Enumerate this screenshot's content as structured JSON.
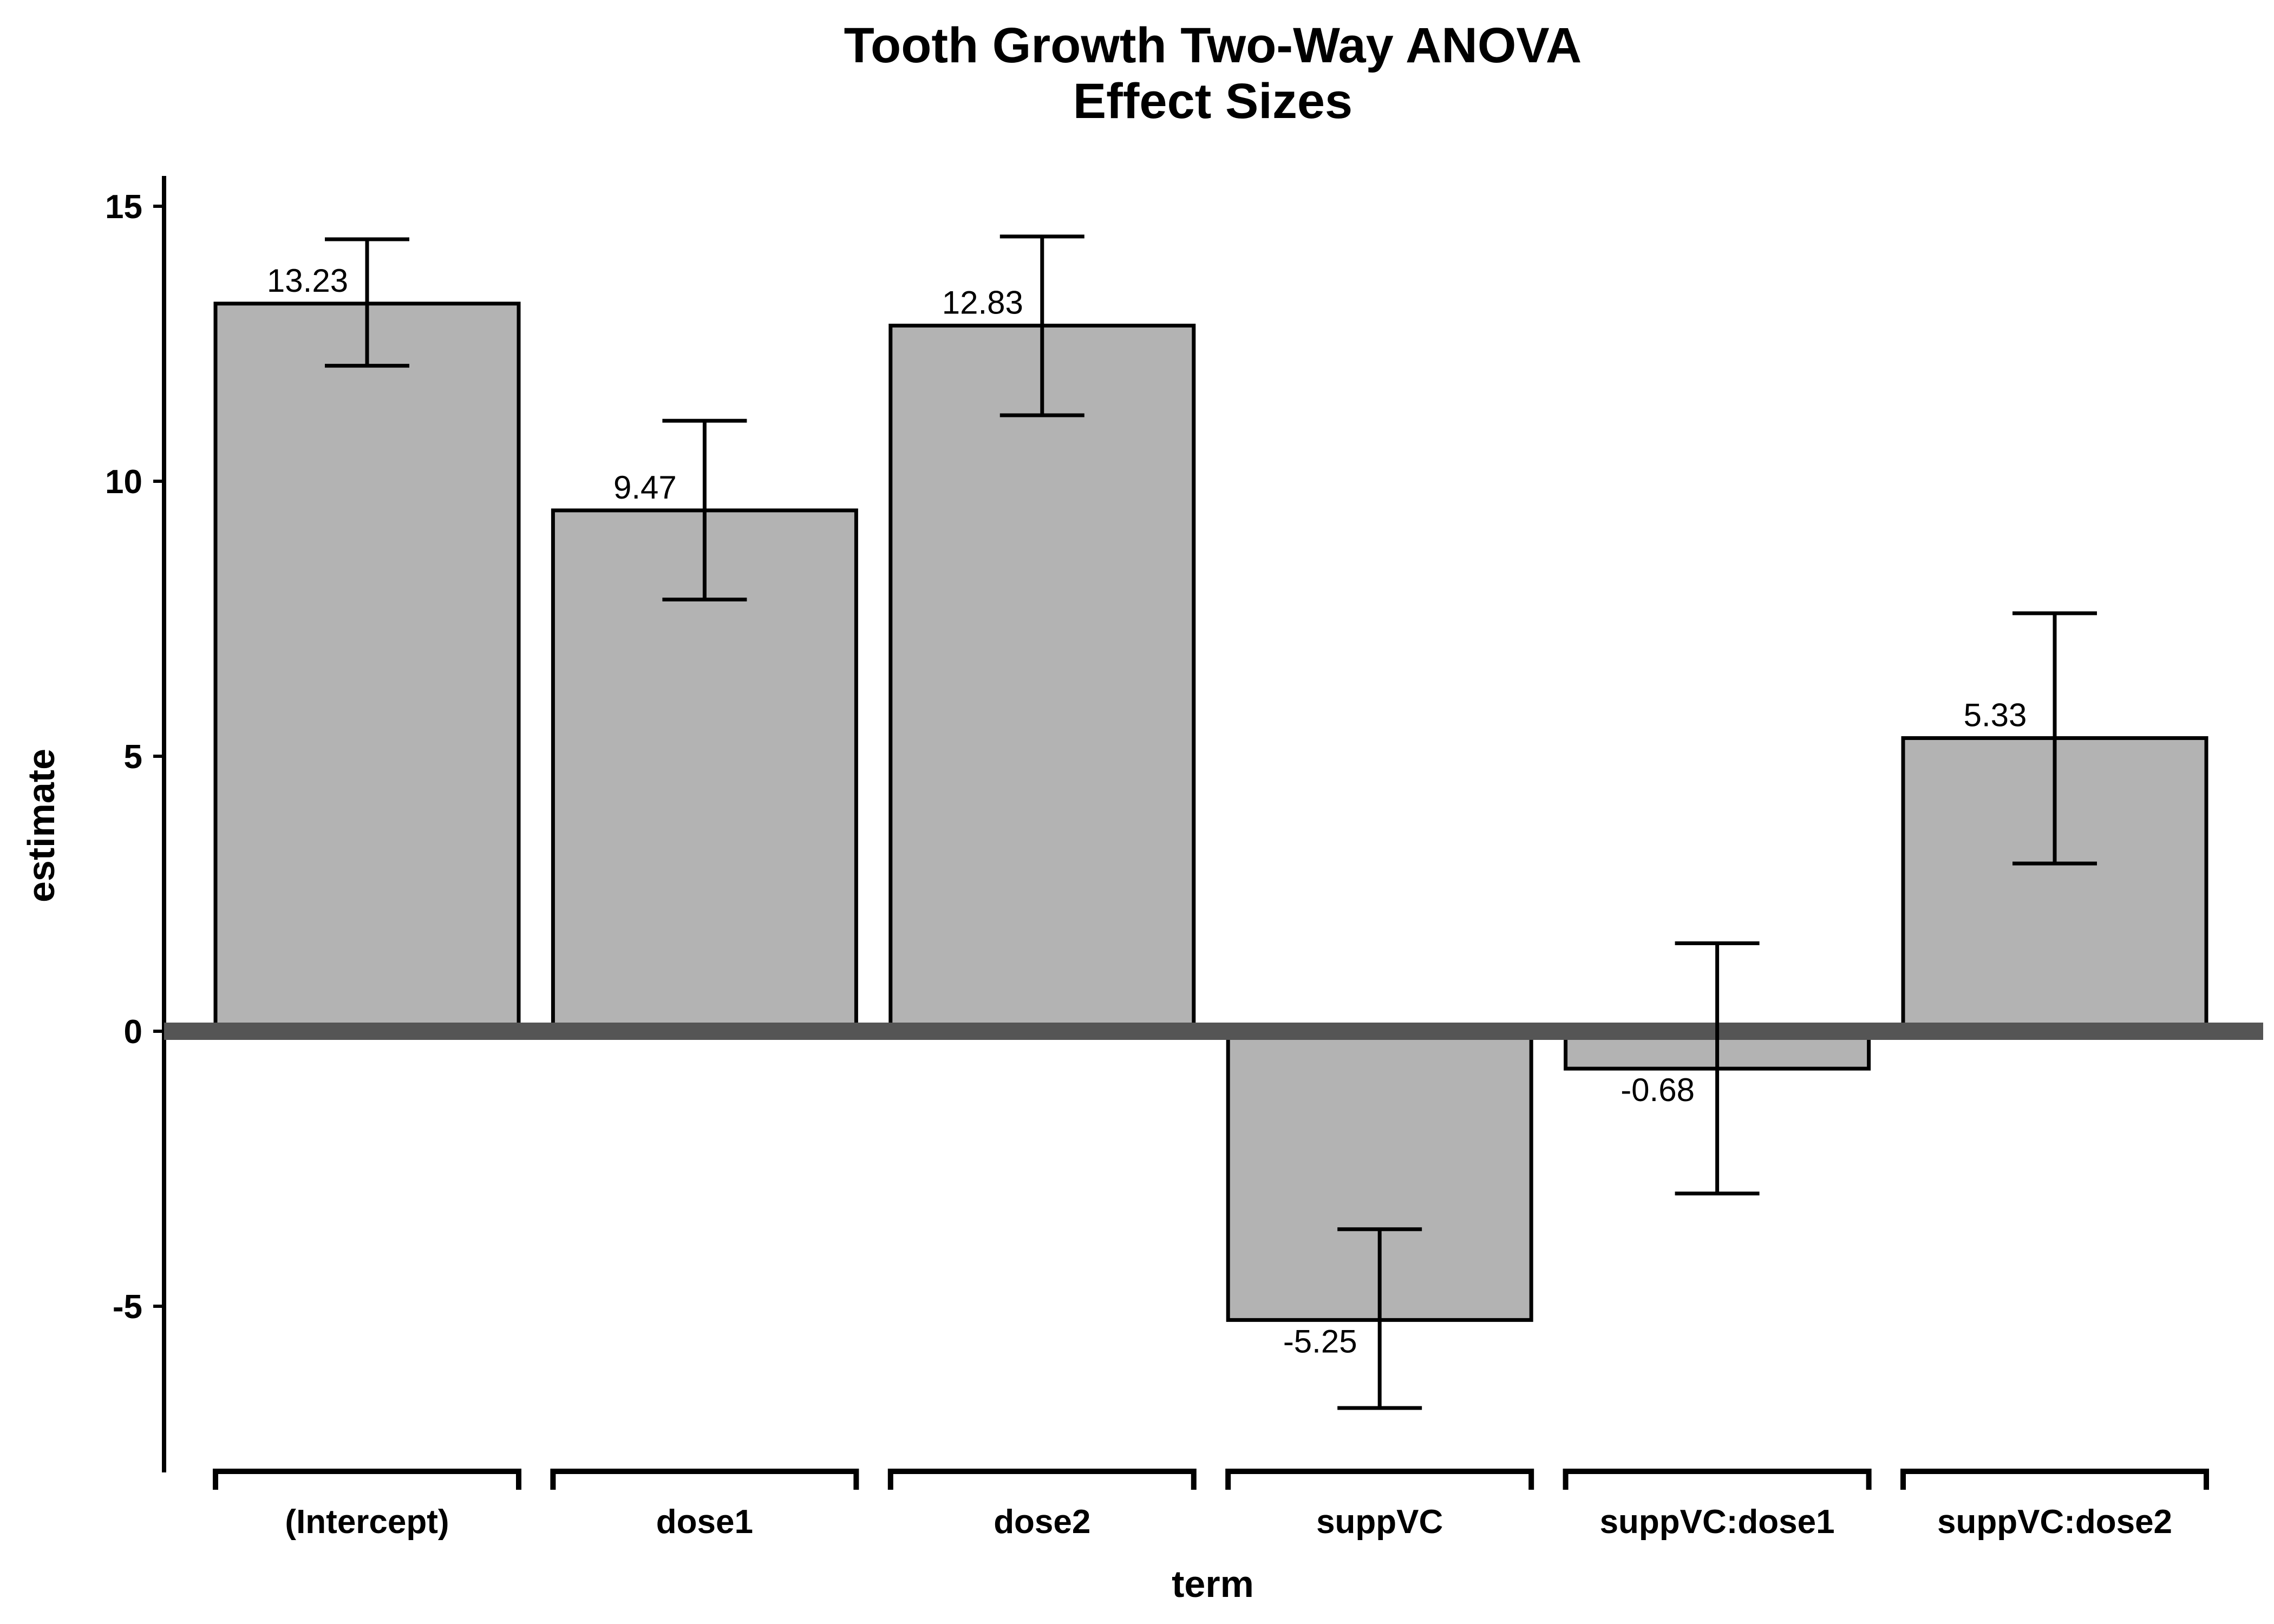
{
  "chart_data": {
    "type": "bar",
    "title": "Tooth Growth Two-Way ANOVA",
    "subtitle": "Effect Sizes",
    "xlabel": "term",
    "ylabel": "estimate",
    "ylim": [
      -8,
      16
    ],
    "yticks": [
      15,
      10,
      5,
      0,
      -5
    ],
    "ytick_labels": [
      "15",
      "10",
      "5",
      "0",
      "-5"
    ],
    "categories": [
      "(Intercept)",
      "dose1",
      "dose2",
      "suppVC",
      "suppVC:dose1",
      "suppVC:dose2"
    ],
    "values": [
      13.23,
      9.47,
      12.83,
      -5.25,
      -0.68,
      5.33
    ],
    "value_labels": [
      "13.23",
      "9.47",
      "12.83",
      "-5.25",
      "-0.68",
      "5.33"
    ],
    "error_low": [
      12.1,
      7.85,
      11.2,
      -6.85,
      -2.95,
      3.05
    ],
    "error_high": [
      14.4,
      11.1,
      14.45,
      -3.6,
      1.6,
      7.6
    ],
    "grid": false,
    "legend": "none",
    "colors": {
      "bar_fill": "#b3b3b3",
      "bar_stroke": "#000000",
      "zero_line": "#555555",
      "error_bar": "#000000"
    }
  }
}
